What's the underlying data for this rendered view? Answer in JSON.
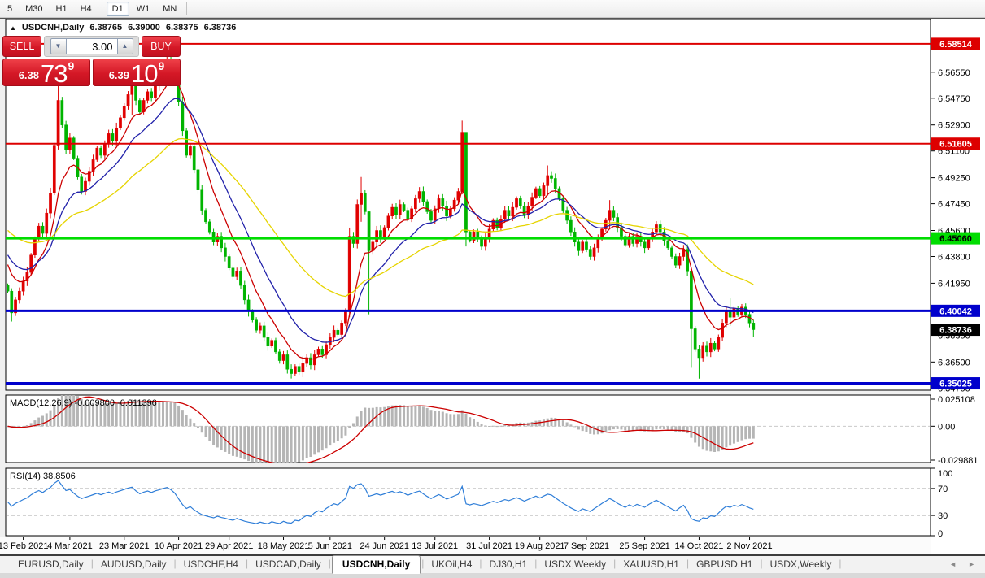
{
  "toolbar": {
    "timeframes": [
      {
        "label": "5",
        "name": "m15-partial",
        "active": false
      },
      {
        "label": "M30",
        "name": "m30",
        "active": false
      },
      {
        "label": "H1",
        "name": "h1",
        "active": false
      },
      {
        "label": "H4",
        "name": "h4",
        "active": false
      },
      {
        "label": "D1",
        "name": "d1",
        "active": true
      },
      {
        "label": "W1",
        "name": "w1",
        "active": false
      },
      {
        "label": "MN",
        "name": "mn",
        "active": false
      }
    ]
  },
  "chart_header": {
    "collapse_icon": "▲",
    "title": "USDCNH,Daily",
    "open": "6.38765",
    "high": "6.39000",
    "low": "6.38375",
    "close": "6.38736"
  },
  "trade_panel": {
    "sell_label": "SELL",
    "buy_label": "BUY",
    "volume": "3.00",
    "decrease_glyph": "▼",
    "increase_glyph": "▲",
    "sell_price": {
      "prefix": "6.38",
      "big": "73",
      "sup": "9"
    },
    "buy_price": {
      "prefix": "6.39",
      "big": "10",
      "sup": "9"
    }
  },
  "price_axis": {
    "ticks": [
      "6.56550",
      "6.54750",
      "6.52900",
      "6.51100",
      "6.49250",
      "6.47450",
      "6.45600",
      "6.43800",
      "6.41950",
      "6.38350",
      "6.36500",
      "6.34700"
    ],
    "badges": [
      {
        "text": "6.58514",
        "price": 6.58514,
        "bg": "#dd0000",
        "fg": "#ffffff"
      },
      {
        "text": "6.51605",
        "price": 6.51605,
        "bg": "#dd0000",
        "fg": "#ffffff"
      },
      {
        "text": "6.45060",
        "price": 6.4506,
        "bg": "#00dd00",
        "fg": "#000000"
      },
      {
        "text": "6.40042",
        "price": 6.40042,
        "bg": "#0000cc",
        "fg": "#ffffff"
      },
      {
        "text": "6.38736",
        "price": 6.38736,
        "bg": "#000000",
        "fg": "#ffffff"
      },
      {
        "text": "6.35025",
        "price": 6.35025,
        "bg": "#0000cc",
        "fg": "#ffffff"
      }
    ]
  },
  "chart_data": {
    "type": "candlestick",
    "symbol": "USDCNH",
    "timeframe": "Daily",
    "y_range": [
      6.3455,
      6.6025
    ],
    "open_first": 6.418,
    "up_color": "#e00000",
    "down_color": "#00b400",
    "closes": [
      6.414,
      6.399,
      6.408,
      6.414,
      6.421,
      6.427,
      6.439,
      6.45,
      6.459,
      6.454,
      6.468,
      6.482,
      6.515,
      6.546,
      6.529,
      6.512,
      6.52,
      6.506,
      6.493,
      6.483,
      6.49,
      6.497,
      6.505,
      6.513,
      6.508,
      6.516,
      6.523,
      6.518,
      6.527,
      6.534,
      6.542,
      6.55,
      6.556,
      6.546,
      6.538,
      6.546,
      6.552,
      6.548,
      6.556,
      6.561,
      6.568,
      6.574,
      6.569,
      6.561,
      6.545,
      6.525,
      6.508,
      6.514,
      6.498,
      6.484,
      6.47,
      6.462,
      6.455,
      6.448,
      6.452,
      6.444,
      6.438,
      6.43,
      6.424,
      6.428,
      6.418,
      6.408,
      6.4,
      6.394,
      6.387,
      6.39,
      6.382,
      6.376,
      6.38,
      6.372,
      6.366,
      6.37,
      6.36,
      6.357,
      6.362,
      6.358,
      6.364,
      6.368,
      6.363,
      6.37,
      6.374,
      6.37,
      6.377,
      6.382,
      6.387,
      6.384,
      6.392,
      6.4,
      6.452,
      6.447,
      6.474,
      6.482,
      6.469,
      6.442,
      6.448,
      6.456,
      6.451,
      6.458,
      6.466,
      6.472,
      6.467,
      6.474,
      6.47,
      6.464,
      6.471,
      6.478,
      6.483,
      6.476,
      6.469,
      6.463,
      6.471,
      6.478,
      6.473,
      6.466,
      6.471,
      6.477,
      6.483,
      6.524,
      6.455,
      6.449,
      6.455,
      6.45,
      6.445,
      6.451,
      6.457,
      6.463,
      6.458,
      6.464,
      6.47,
      6.466,
      6.472,
      6.478,
      6.473,
      6.467,
      6.473,
      6.479,
      6.485,
      6.48,
      6.487,
      6.494,
      6.492,
      6.485,
      6.478,
      6.47,
      6.463,
      6.455,
      6.448,
      6.442,
      6.448,
      6.443,
      6.438,
      6.444,
      6.45,
      6.457,
      6.463,
      6.47,
      6.465,
      6.458,
      6.452,
      6.446,
      6.452,
      6.447,
      6.452,
      6.448,
      6.444,
      6.45,
      6.455,
      6.46,
      6.455,
      6.449,
      6.444,
      6.438,
      6.432,
      6.438,
      6.443,
      6.428,
      6.388,
      6.374,
      6.368,
      6.376,
      6.372,
      6.378,
      6.374,
      6.382,
      6.392,
      6.4,
      6.396,
      6.402,
      6.398,
      6.403,
      6.398,
      6.392,
      6.3874
    ],
    "wick_overrides": {
      "1": [
        6.416,
        6.393
      ],
      "13": [
        6.557,
        6.512
      ],
      "32": [
        6.566,
        6.536
      ],
      "41": [
        6.5795,
        6.559
      ],
      "76": [
        6.369,
        6.3545
      ],
      "88": [
        6.458,
        6.396
      ],
      "91": [
        6.493,
        6.462
      ],
      "93": [
        6.449,
        6.398
      ],
      "117": [
        6.532,
        6.481
      ],
      "118": [
        6.52,
        6.445
      ],
      "139": [
        6.501,
        6.48
      ],
      "155": [
        6.477,
        6.458
      ],
      "176": [
        6.43,
        6.361
      ],
      "178": [
        6.377,
        6.3535
      ],
      "186": [
        6.409,
        6.39
      ],
      "192": [
        6.394,
        6.3825
      ]
    },
    "sr_lines": [
      {
        "price": 6.58514,
        "color": "#dd0000",
        "width": 2
      },
      {
        "price": 6.51605,
        "color": "#dd0000",
        "width": 2
      },
      {
        "price": 6.4506,
        "color": "#00dd00",
        "width": 3
      },
      {
        "price": 6.40042,
        "color": "#0000cc",
        "width": 3
      },
      {
        "price": 6.35025,
        "color": "#0000cc",
        "width": 3
      }
    ],
    "ma_lines": [
      {
        "period": 9,
        "color": "#cc0000",
        "seed": 6.437
      },
      {
        "period": 18,
        "color": "#2222aa",
        "seed": 6.442
      },
      {
        "period": 45,
        "color": "#e6d400",
        "seed": 6.458
      }
    ],
    "x_labels": [
      {
        "text": "13 Feb 2021",
        "i": 4
      },
      {
        "text": "4 Mar 2021",
        "i": 16
      },
      {
        "text": "23 Mar 2021",
        "i": 30
      },
      {
        "text": "10 Apr 2021",
        "i": 44
      },
      {
        "text": "29 Apr 2021",
        "i": 57
      },
      {
        "text": "18 May 2021",
        "i": 71
      },
      {
        "text": "5 Jun 2021",
        "i": 83
      },
      {
        "text": "24 Jun 2021",
        "i": 97
      },
      {
        "text": "13 Jul 2021",
        "i": 110
      },
      {
        "text": "31 Jul 2021",
        "i": 124
      },
      {
        "text": "19 Aug 2021",
        "i": 137
      },
      {
        "text": "7 Sep 2021",
        "i": 149
      },
      {
        "text": "25 Sep 2021",
        "i": 164
      },
      {
        "text": "14 Oct 2021",
        "i": 178
      },
      {
        "text": "2 Nov 2021",
        "i": 191
      }
    ],
    "indicators": [
      {
        "name": "MACD(12,26,9)",
        "values": [
          "-0.009800",
          "-0.011396"
        ],
        "params": [
          12,
          26,
          9
        ],
        "axis_labels": [
          "0.025108",
          "0.00",
          "-0.029881"
        ],
        "axis_values": [
          0.025108,
          0,
          -0.029881
        ],
        "scale_max": 0.0266,
        "scale_min": -0.031,
        "histogram_color": "#b5b5b5",
        "signal_color": "#cc0000"
      },
      {
        "name": "RSI(14)",
        "values": [
          "38.8506"
        ],
        "period": 14,
        "levels": [
          70,
          30
        ],
        "axis_labels": [
          "100",
          "70",
          "30",
          "0"
        ],
        "axis_values": [
          100,
          70,
          30,
          0
        ],
        "line_color": "#2f7ed8"
      }
    ]
  },
  "bottom_tabs": {
    "tabs": [
      {
        "label": "EURUSD,Daily",
        "active": false
      },
      {
        "label": "AUDUSD,Daily",
        "active": false
      },
      {
        "label": "USDCHF,H4",
        "active": false
      },
      {
        "label": "USDCAD,Daily",
        "active": false
      },
      {
        "label": "USDCNH,Daily",
        "active": true
      },
      {
        "label": "UKOil,H4",
        "active": false
      },
      {
        "label": "DJ30,H1",
        "active": false
      },
      {
        "label": "USDX,Weekly",
        "active": false
      },
      {
        "label": "XAUUSD,H1",
        "active": false
      },
      {
        "label": "GBPUSD,H1",
        "active": false
      },
      {
        "label": "USDX,Weekly",
        "active": false
      }
    ],
    "scroll_left": "◄",
    "scroll_right": "►"
  }
}
